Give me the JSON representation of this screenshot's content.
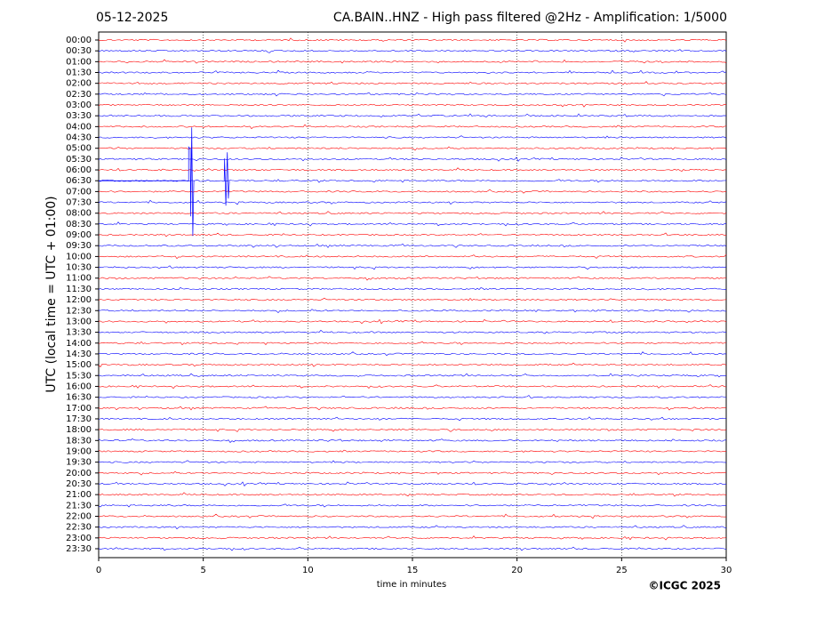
{
  "chart_data": {
    "type": "helicorder",
    "date": "05-12-2025",
    "title": "CA.BAIN..HNZ - High pass filtered @2Hz - Amplification: 1/5000",
    "xlabel": "time in minutes",
    "ylabel": "UTC (local time = UTC + 01:00)",
    "copyright": "©ICGC 2025",
    "categories": [
      "00:00",
      "00:30",
      "01:00",
      "01:30",
      "02:00",
      "02:30",
      "03:00",
      "03:30",
      "04:00",
      "04:30",
      "05:00",
      "05:30",
      "06:00",
      "06:30",
      "07:00",
      "07:30",
      "08:00",
      "08:30",
      "09:00",
      "09:30",
      "10:00",
      "10:30",
      "11:00",
      "11:30",
      "12:00",
      "12:30",
      "13:00",
      "13:30",
      "14:00",
      "14:30",
      "15:00",
      "15:30",
      "16:00",
      "16:30",
      "17:00",
      "17:30",
      "18:00",
      "18:30",
      "19:00",
      "19:30",
      "20:00",
      "20:30",
      "21:00",
      "21:30",
      "22:00",
      "22:30",
      "23:00",
      "23:30"
    ],
    "xlim": [
      0,
      30
    ],
    "xticks": [
      0,
      5,
      10,
      15,
      20,
      25,
      30
    ],
    "grid": true,
    "trace_colors": [
      "#ff0000",
      "#0000ff"
    ]
  }
}
